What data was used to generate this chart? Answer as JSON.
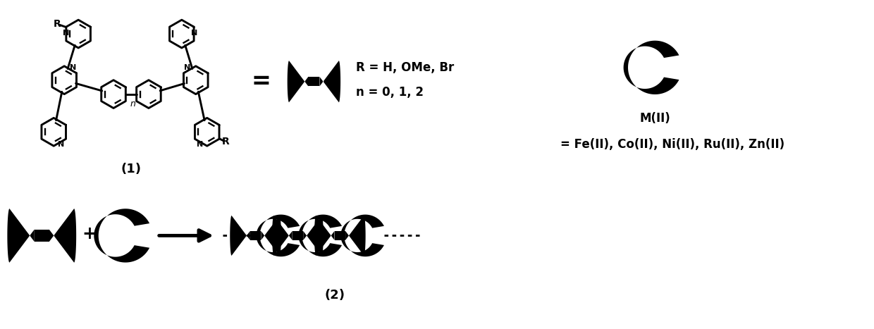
{
  "bg_color": "#ffffff",
  "text_color": "#000000",
  "label1": "(1)",
  "label2": "(2)",
  "r_text_line1": "R = H, OMe, Br",
  "r_text_line2": "n = 0, 1, 2",
  "m_label": "M(II)",
  "m_text": "= Fe(II), Co(II), Ni(II), Ru(II), Zn(II)",
  "plus_text": "+",
  "equals_text": "="
}
